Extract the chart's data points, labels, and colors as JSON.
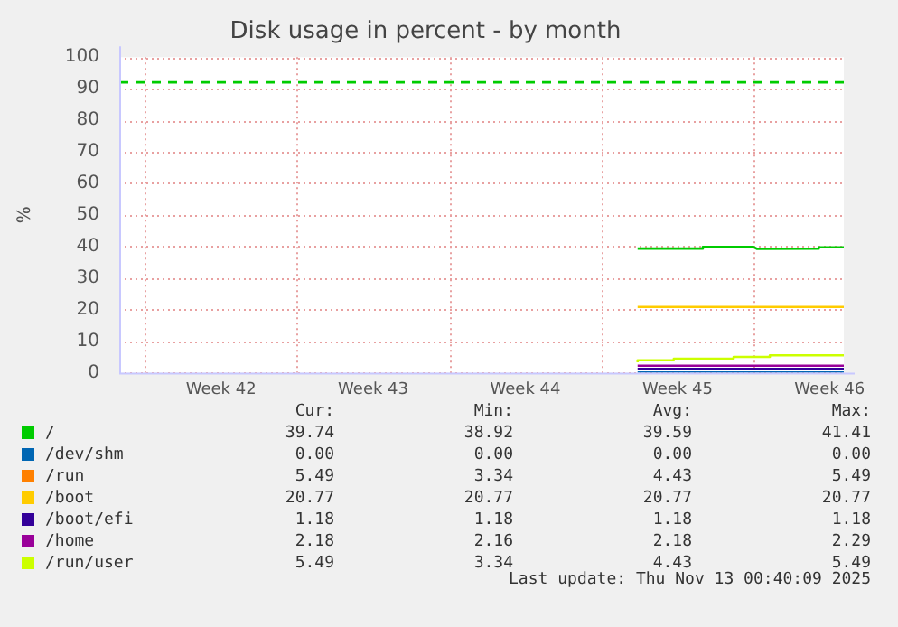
{
  "chart_data": {
    "type": "line",
    "title": "Disk usage in percent - by month",
    "ylabel": "%",
    "xlim": [
      "2025-10-10T16:40",
      "2025-11-13T00:40"
    ],
    "xticks": [
      {
        "value": "2025-10-11T21:00",
        "label": null
      },
      {
        "value": "2025-10-15T09:00",
        "label": "Week 42"
      },
      {
        "value": "2025-10-18T21:00",
        "label": null
      },
      {
        "value": "2025-10-22T09:00",
        "label": "Week 43"
      },
      {
        "value": "2025-10-25T21:00",
        "label": null
      },
      {
        "value": "2025-10-29T09:00",
        "label": "Week 44"
      },
      {
        "value": "2025-11-01T21:00",
        "label": null
      },
      {
        "value": "2025-11-05T09:00",
        "label": "Week 45"
      },
      {
        "value": "2025-11-08T21:00",
        "label": null
      },
      {
        "value": "2025-11-12T09:00",
        "label": "Week 46"
      }
    ],
    "ylim": [
      0,
      100
    ],
    "yticks": [
      0,
      10,
      20,
      30,
      40,
      50,
      60,
      70,
      80,
      90,
      100
    ],
    "grid": true,
    "legend": "bottom",
    "series": [
      {
        "name": "/",
        "color": "#00cc00",
        "x": [
          "2025-11-03T13:00",
          "2025-11-06T13:00",
          "2025-11-06T13:01",
          "2025-11-08T21:00",
          "2025-11-09T01:00",
          "2025-11-11T21:00",
          "2025-11-11T21:01",
          "2025-11-13T00:40"
        ],
        "values": [
          39.3,
          39.3,
          39.8,
          39.8,
          39.2,
          39.3,
          39.7,
          39.7
        ]
      },
      {
        "name": "/dev/shm",
        "color": "#0066b3",
        "x": [
          "2025-11-03T13:00",
          "2025-11-13T00:40"
        ],
        "values": [
          0,
          0
        ]
      },
      {
        "name": "/run",
        "color": "#ff8000",
        "values": [
          null
        ]
      },
      {
        "name": "/boot",
        "color": "#ffcc00",
        "x": [
          "2025-11-03T13:00",
          "2025-11-13T00:40"
        ],
        "values": [
          20.8,
          20.8
        ]
      },
      {
        "name": "/boot/efi",
        "color": "#330099",
        "x": [
          "2025-11-03T13:00",
          "2025-11-13T00:40"
        ],
        "values": [
          1.2,
          1.2
        ]
      },
      {
        "name": "/home",
        "color": "#990099",
        "x": [
          "2025-11-03T13:00",
          "2025-11-13T00:40"
        ],
        "values": [
          2.2,
          2.2
        ]
      },
      {
        "name": "/run/user",
        "color": "#ccff00",
        "type": "step",
        "x": [
          "2025-11-03T13:00",
          "2025-11-05T05:00",
          "2025-11-07T23:00",
          "2025-11-09T15:00",
          "2025-11-12T05:00",
          "2025-11-13T00:40"
        ],
        "values": [
          3.3,
          3.9,
          4.4,
          5.0,
          5.5,
          5.5
        ]
      }
    ],
    "ref_lines": [
      {
        "axis": "y",
        "value": 92,
        "color": "#00cc00",
        "line_style": "dashed"
      }
    ],
    "annotations": [
      "Cur:",
      "Min:",
      "Avg:",
      "Max:",
      "39.74",
      "38.92",
      "39.59",
      "41.41",
      "0.00",
      "0.00",
      "0.00",
      "0.00",
      "5.49",
      "3.34",
      "4.43",
      "5.49",
      "20.77",
      "20.77",
      "20.77",
      "20.77",
      "1.18",
      "1.18",
      "1.18",
      "1.18",
      "2.18",
      "2.16",
      "2.18",
      "2.29",
      "5.49",
      "3.34",
      "4.43",
      "5.49",
      "Last update: Thu Nov 13 00:40:09 2025"
    ]
  }
}
